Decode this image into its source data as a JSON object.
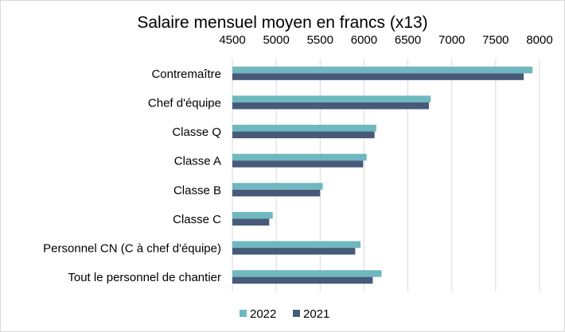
{
  "chart_data": {
    "type": "bar",
    "orientation": "horizontal",
    "title": "Salaire mensuel moyen en francs (x13)",
    "xlabel": "",
    "ylabel": "",
    "xlim": [
      4500,
      8000
    ],
    "x_ticks": [
      "4500",
      "5000",
      "5500",
      "6000",
      "6500",
      "7000",
      "7500",
      "8000"
    ],
    "x_axis_position": "top",
    "grid": true,
    "legend": "bottom",
    "categories": [
      "Contremaître",
      "Chef d'équipe",
      "Classe Q",
      "Classe A",
      "Classe B",
      "Classe C",
      "Personnel CN (C à chef d'équipe)",
      "Tout le personnel de chantier"
    ],
    "series": [
      {
        "name": "2022",
        "color": "#6fb8c0",
        "values": [
          7920,
          6760,
          6140,
          6030,
          5530,
          4960,
          5960,
          6200
        ]
      },
      {
        "name": "2021",
        "color": "#475a79",
        "values": [
          7820,
          6740,
          6120,
          5990,
          5500,
          4920,
          5900,
          6100
        ]
      }
    ]
  }
}
